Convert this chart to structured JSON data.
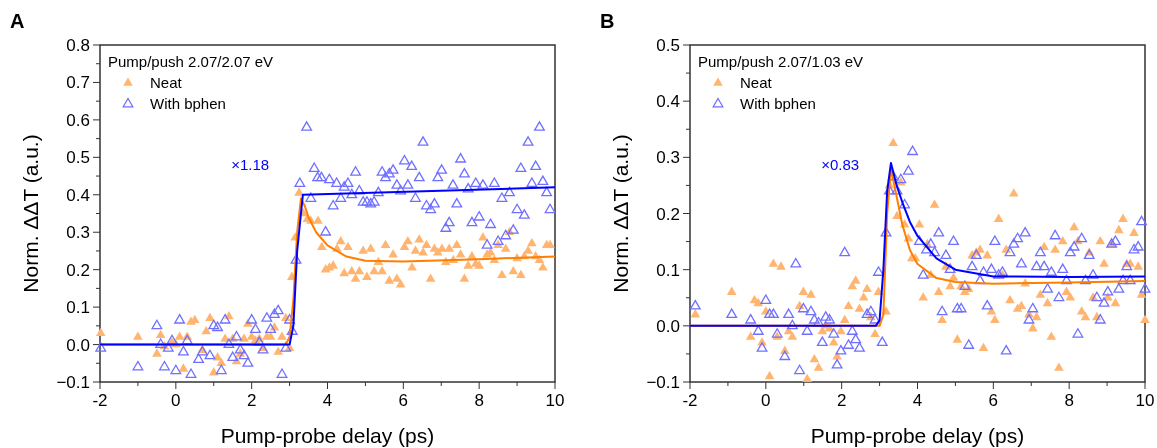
{
  "chart_data": [
    {
      "type": "scatter",
      "title": "A",
      "xlabel": "Pump-probe delay (ps)",
      "ylabel": "Norm. ΔΔT (a.u.)",
      "legend_title": "Pump/push 2.07/2.07 eV",
      "legend": "top left",
      "annotations": [
        "×1.18"
      ],
      "xlim": [
        -2,
        10
      ],
      "xticks": [
        -2,
        {
          "value": -1,
          "label": null
        },
        0,
        {
          "value": 1,
          "label": null
        },
        2,
        {
          "value": 3,
          "label": null
        },
        4,
        {
          "value": 5,
          "label": null
        },
        6,
        {
          "value": 7,
          "label": null
        },
        8,
        {
          "value": 9,
          "label": null
        },
        10
      ],
      "ylim": [
        -0.1,
        0.8
      ],
      "yticks": [
        {
          "value": -0.1,
          "label": "−0.1"
        },
        {
          "value": -0.05,
          "label": null
        },
        {
          "value": 0,
          "label": "0.0"
        },
        {
          "value": 0.05,
          "label": null
        },
        0.1,
        {
          "value": 0.15,
          "label": null
        },
        0.2,
        {
          "value": 0.25,
          "label": null
        },
        0.3,
        {
          "value": 0.35,
          "label": null
        },
        0.4,
        {
          "value": 0.45,
          "label": null
        },
        0.5,
        {
          "value": 0.55,
          "label": null
        },
        0.6,
        {
          "value": 0.65,
          "label": null
        },
        0.7,
        {
          "value": 0.75,
          "label": null
        },
        0.8
      ],
      "series": [
        {
          "name": "Neat",
          "color": "#ffb570",
          "marker": "triangle",
          "x": [
            -1.98,
            -1.0,
            -0.5,
            -0.4,
            -0.3,
            -0.1,
            0,
            0.1,
            0.2,
            0.3,
            0.4,
            0.5,
            0.7,
            0.8,
            0.9,
            1.0,
            1.1,
            1.2,
            1.3,
            1.4,
            1.5,
            1.6,
            1.7,
            1.8,
            1.9,
            2.0,
            2.1,
            2.2,
            2.3,
            2.4,
            2.5,
            2.6,
            2.7,
            2.8,
            2.9,
            3.0,
            3.06,
            3.15,
            3.25,
            3.36,
            3.47,
            3.56,
            3.75,
            3.85,
            3.95,
            4.05,
            4.15,
            4.25,
            4.35,
            4.44,
            4.54,
            4.64,
            4.74,
            4.84,
            4.94,
            5.04,
            5.14,
            5.23,
            5.34,
            5.44,
            5.53,
            5.63,
            5.73,
            5.83,
            5.93,
            6.03,
            6.12,
            6.23,
            6.32,
            6.42,
            6.52,
            6.61,
            6.72,
            6.82,
            6.91,
            7.02,
            7.12,
            7.21,
            7.32,
            7.41,
            7.51,
            7.61,
            7.71,
            7.81,
            7.91,
            8.0,
            8.1,
            8.21,
            8.3,
            8.4,
            8.5,
            8.6,
            8.7,
            8.8,
            8.9,
            9.0,
            9.1,
            9.19,
            9.29,
            9.39,
            9.49,
            9.59,
            9.68,
            9.78,
            9.87
          ],
          "values": [
            0.03,
            0.02,
            -0.025,
            0.025,
            -0.005,
            0.005,
            0.0,
            0.02,
            -0.065,
            0.02,
            0.06,
            0.065,
            -0.015,
            0.035,
            0.07,
            -0.075,
            -0.035,
            -0.05,
            0.015,
            0.075,
            0.015,
            -0.045,
            -0.025,
            0.015,
            0.055,
            0.02,
            0.01,
            0.015,
            -0.01,
            0.02,
            0.02,
            0.045,
            -0.02,
            0.02,
            0.07,
            -0.01,
            0.18,
            0.285,
            0.405,
            0.35,
            0.335,
            0.33,
            0.33,
            0.26,
            0.2,
            0.205,
            0.21,
            0.255,
            0.275,
            0.19,
            0.26,
            0.195,
            0.175,
            0.195,
            0.25,
            0.18,
            0.255,
            0.195,
            0.22,
            0.195,
            0.265,
            0.17,
            0.24,
            0.175,
            0.16,
            0.26,
            0.275,
            0.205,
            0.25,
            0.28,
            0.245,
            0.265,
            0.175,
            0.255,
            0.245,
            0.255,
            0.22,
            0.255,
            0.225,
            0.265,
            0.24,
            0.175,
            0.21,
            0.235,
            0.215,
            0.21,
            0.285,
            0.24,
            0.245,
            0.225,
            0.265,
            0.185,
            0.255,
            0.3,
            0.195,
            0.23,
            0.185,
            0.235,
            0.25,
            0.27,
            0.235,
            0.225,
            0.205,
            0.265,
            0.265
          ]
        },
        {
          "name": "With bphen",
          "color": "#7070ff",
          "marker": "triangle",
          "x": [
            -1.98,
            -1.0,
            -0.5,
            -0.4,
            -0.3,
            -0.2,
            -0.1,
            0,
            0.1,
            0.2,
            0.3,
            0.4,
            0.6,
            0.7,
            0.9,
            1.0,
            1.1,
            1.2,
            1.3,
            1.4,
            1.5,
            1.6,
            1.7,
            1.8,
            1.9,
            2.0,
            2.1,
            2.2,
            2.3,
            2.4,
            2.5,
            2.6,
            2.7,
            2.8,
            2.9,
            3.0,
            3.07,
            3.17,
            3.27,
            3.45,
            3.56,
            3.65,
            3.74,
            3.84,
            3.95,
            4.05,
            4.15,
            4.24,
            4.35,
            4.44,
            4.54,
            4.64,
            4.74,
            4.84,
            4.94,
            5.04,
            5.14,
            5.23,
            5.34,
            5.44,
            5.53,
            5.63,
            5.73,
            5.83,
            5.93,
            6.03,
            6.12,
            6.22,
            6.32,
            6.42,
            6.52,
            6.61,
            6.72,
            6.82,
            6.91,
            7.01,
            7.12,
            7.21,
            7.31,
            7.41,
            7.51,
            7.61,
            7.71,
            7.81,
            7.91,
            8.0,
            8.1,
            8.21,
            8.3,
            8.4,
            8.5,
            8.6,
            8.7,
            8.8,
            8.9,
            9.0,
            9.1,
            9.19,
            9.29,
            9.39,
            9.49,
            9.59,
            9.68,
            9.78,
            9.87
          ],
          "values": [
            -0.01,
            -0.06,
            0.05,
            0.0,
            -0.06,
            -0.01,
            0.01,
            -0.07,
            0.065,
            -0.02,
            0.01,
            -0.08,
            -0.04,
            -0.02,
            -0.03,
            0.05,
            0.045,
            -0.07,
            0.065,
            0.0,
            -0.035,
            0.02,
            -0.015,
            -0.03,
            -0.05,
            0.065,
            0.04,
            0.005,
            -0.015,
            0.07,
            0.04,
            0.08,
            0.09,
            -0.08,
            -0.01,
            0.065,
            0.035,
            0.225,
            0.43,
            0.58,
            0.39,
            0.47,
            0.445,
            0.445,
            0.3,
            0.44,
            0.37,
            0.43,
            0.39,
            0.42,
            0.43,
            0.4,
            0.46,
            0.41,
            0.38,
            0.38,
            0.375,
            0.38,
            0.405,
            0.46,
            0.445,
            0.455,
            0.465,
            0.425,
            0.41,
            0.49,
            0.425,
            0.475,
            0.39,
            0.445,
            0.54,
            0.37,
            0.36,
            0.375,
            0.445,
            0.465,
            0.31,
            0.325,
            0.425,
            0.375,
            0.495,
            0.455,
            0.415,
            0.325,
            0.43,
            0.34,
            0.425,
            0.265,
            0.32,
            0.43,
            0.275,
            0.39,
            0.29,
            0.405,
            0.305,
            0.36,
            0.47,
            0.345,
            0.54,
            0.43,
            0.475,
            0.58,
            0.435,
            0.405,
            0.36
          ]
        },
        {
          "type": "line",
          "color": "#ff7f00",
          "marker": "none",
          "x": [
            -2,
            2.9,
            3.0,
            3.1,
            3.2,
            3.3,
            3.4,
            3.5,
            3.7,
            4.0,
            4.5,
            5.0,
            6.0,
            8.0,
            10
          ],
          "values": [
            0,
            0,
            0.02,
            0.12,
            0.3,
            0.39,
            0.37,
            0.34,
            0.3,
            0.265,
            0.235,
            0.224,
            0.222,
            0.228,
            0.235
          ]
        },
        {
          "type": "line",
          "color": "#0000ff",
          "marker": "none",
          "x": [
            -2,
            3.0,
            3.1,
            3.2,
            3.35,
            10
          ],
          "values": [
            0,
            0,
            0.05,
            0.25,
            0.4,
            0.42
          ]
        }
      ]
    },
    {
      "type": "scatter",
      "title": "B",
      "xlabel": "Pump-probe delay (ps)",
      "ylabel": "Norm. ΔΔT (a.u.)",
      "legend_title": "Pump/push 2.07/1.03 eV",
      "legend": "top left",
      "annotations": [
        "×0.83"
      ],
      "xlim": [
        -2,
        10
      ],
      "xticks": [
        -2,
        {
          "value": -1,
          "label": null
        },
        0,
        {
          "value": 1,
          "label": null
        },
        2,
        {
          "value": 3,
          "label": null
        },
        4,
        {
          "value": 5,
          "label": null
        },
        6,
        {
          "value": 7,
          "label": null
        },
        8,
        {
          "value": 9,
          "label": null
        },
        10
      ],
      "ylim": [
        -0.1,
        0.5
      ],
      "yticks": [
        {
          "value": -0.1,
          "label": "−0.1"
        },
        {
          "value": -0.05,
          "label": null
        },
        {
          "value": 0,
          "label": "0.0"
        },
        {
          "value": 0.05,
          "label": null
        },
        0.1,
        {
          "value": 0.15,
          "label": null
        },
        0.2,
        {
          "value": 0.25,
          "label": null
        },
        0.3,
        {
          "value": 0.35,
          "label": null
        },
        0.4,
        {
          "value": 0.45,
          "label": null
        },
        0.5
      ],
      "series": [
        {
          "name": "Neat",
          "color": "#ffb570",
          "marker": "triangle",
          "x": [
            -1.86,
            -0.9,
            -0.4,
            -0.3,
            -0.2,
            -0.1,
            0,
            0.1,
            0.2,
            0.3,
            0.4,
            0.5,
            0.6,
            0.7,
            0.89,
            0.99,
            1.09,
            1.19,
            1.28,
            1.39,
            1.49,
            1.58,
            1.68,
            1.79,
            1.88,
            1.98,
            2.08,
            2.18,
            2.28,
            2.37,
            2.47,
            2.58,
            2.67,
            2.77,
            2.88,
            2.97,
            3.17,
            3.26,
            3.36,
            3.46,
            3.56,
            3.66,
            3.76,
            3.85,
            3.94,
            4.05,
            4.15,
            4.26,
            4.35,
            4.45,
            4.56,
            4.65,
            4.75,
            4.86,
            4.95,
            5.05,
            5.15,
            5.25,
            5.35,
            5.44,
            5.55,
            5.65,
            5.74,
            5.84,
            5.95,
            6.04,
            6.14,
            6.24,
            6.34,
            6.44,
            6.54,
            6.64,
            6.74,
            6.84,
            6.94,
            7.04,
            7.14,
            7.24,
            7.34,
            7.43,
            7.53,
            7.63,
            7.73,
            7.83,
            7.93,
            8.03,
            8.13,
            8.23,
            8.33,
            8.43,
            8.53,
            8.63,
            8.73,
            8.82,
            8.92,
            9.02,
            9.12,
            9.22,
            9.31,
            9.42,
            9.52,
            9.61,
            9.71,
            9.82,
            9.91,
            10.0
          ],
          "values": [
            0.02,
            0.06,
            -0.02,
            0.045,
            0.04,
            -0.03,
            0.025,
            -0.09,
            0.11,
            -0.02,
            0.105,
            -0.045,
            -0.01,
            -0.02,
            0.035,
            0.06,
            -0.095,
            0.055,
            -0.06,
            -0.075,
            -0.01,
            0.0,
            -0.005,
            -0.03,
            -0.055,
            -0.01,
            0.01,
            0.035,
            0.07,
            0.08,
            0.03,
            0.05,
            0.065,
            0.015,
            -0.015,
            0.06,
            0.025,
            0.25,
            0.325,
            0.195,
            0.255,
            0.18,
            0.155,
            0.12,
            0.12,
            0.18,
            0.05,
            0.145,
            0.09,
            0.215,
            0.06,
            0.01,
            0.105,
            0.07,
            0.085,
            -0.025,
            0.07,
            0.06,
            0.065,
            0.125,
            0.13,
            0.135,
            -0.04,
            0.125,
            0.025,
            0.01,
            0.19,
            0.09,
            0.135,
            0.045,
            0.235,
            0.03,
            0.035,
            0.075,
            0.02,
            -0.005,
            0.015,
            0.055,
            0.14,
            0.04,
            -0.02,
            0.135,
            -0.075,
            0.15,
            0.06,
            0.05,
            0.175,
            0.15,
            0.025,
            0.015,
            0.13,
            0.05,
            0.015,
            0.15,
            0.11,
            0.05,
            0.145,
            0.04,
            0.17,
            0.19,
            0.11,
            0.11,
            0.165,
            0.105,
            0.055,
            0.01
          ]
        },
        {
          "name": "With bphen",
          "color": "#7070ff",
          "marker": "triangle",
          "x": [
            -1.86,
            -0.9,
            -0.4,
            -0.2,
            -0.1,
            0,
            0.1,
            0.2,
            0.3,
            0.5,
            0.6,
            0.7,
            0.79,
            0.89,
            0.99,
            1.09,
            1.19,
            1.28,
            1.39,
            1.49,
            1.58,
            1.68,
            1.79,
            1.88,
            1.98,
            2.08,
            2.18,
            2.28,
            2.37,
            2.47,
            2.67,
            2.77,
            2.88,
            2.97,
            3.07,
            3.17,
            3.26,
            3.36,
            3.46,
            3.56,
            3.66,
            3.76,
            3.87,
            4.05,
            4.15,
            4.24,
            4.35,
            4.45,
            4.56,
            4.65,
            4.75,
            4.86,
            4.95,
            5.05,
            5.15,
            5.25,
            5.35,
            5.44,
            5.55,
            5.65,
            5.74,
            5.84,
            5.95,
            6.04,
            6.14,
            6.24,
            6.34,
            6.44,
            6.54,
            6.64,
            6.74,
            6.84,
            6.94,
            7.04,
            7.14,
            7.24,
            7.34,
            7.43,
            7.53,
            7.63,
            7.73,
            7.83,
            7.93,
            8.03,
            8.13,
            8.23,
            8.33,
            8.43,
            8.53,
            8.63,
            8.73,
            8.82,
            8.92,
            9.02,
            9.12,
            9.22,
            9.31,
            9.42,
            9.52,
            9.61,
            9.71,
            9.82,
            9.91,
            10.0
          ],
          "values": [
            0.035,
            0.02,
            0.01,
            -0.01,
            -0.04,
            0.045,
            0.02,
            0.02,
            -0.015,
            -0.055,
            0.02,
            0.0,
            0.11,
            -0.08,
            0.03,
            -0.01,
            0.025,
            0.01,
            0.005,
            -0.03,
            0.015,
            0.01,
            -0.015,
            -0.07,
            -0.045,
            0.13,
            -0.035,
            -0.01,
            -0.025,
            -0.04,
            0.02,
            0.025,
            0.01,
            0.095,
            -0.03,
            0.165,
            0.24,
            0.265,
            0.24,
            0.26,
            0.215,
            0.275,
            0.31,
            0.15,
            0.09,
            0.135,
            0.145,
            0.13,
            0.165,
            0.025,
            0.125,
            0.1,
            0.15,
            0.03,
            0.03,
            0.07,
            -0.035,
            0.105,
            0.125,
            0.08,
            0.095,
            0.035,
            0.1,
            0.15,
            0.09,
            0.095,
            -0.045,
            0.13,
            0.145,
            0.155,
            0.11,
            0.165,
            0.01,
            0.03,
            0.105,
            0.13,
            0.105,
            0.065,
            0.095,
            0.16,
            0.05,
            0.1,
            0.08,
            0.13,
            0.14,
            -0.015,
            0.155,
            0.08,
            0.125,
            0.09,
            0.05,
            0.01,
            0.04,
            0.06,
            0.145,
            0.15,
            0.065,
            0.08,
            0.105,
            0.08,
            0.135,
            0.14,
            0.185,
            0.065
          ]
        },
        {
          "type": "line",
          "color": "#ff7f00",
          "marker": "none",
          "x": [
            -2,
            3.0,
            3.1,
            3.2,
            3.3,
            3.45,
            3.6,
            3.8,
            4.0,
            4.5,
            5.0,
            6.0,
            8.0,
            10
          ],
          "values": [
            0,
            0,
            0.02,
            0.2,
            0.28,
            0.23,
            0.18,
            0.135,
            0.11,
            0.085,
            0.078,
            0.075,
            0.077,
            0.08
          ]
        },
        {
          "type": "line",
          "color": "#0000ff",
          "marker": "none",
          "x": [
            -2,
            2.9,
            3.0,
            3.1,
            3.2,
            3.3,
            3.45,
            3.6,
            3.8,
            4.0,
            4.5,
            5.0,
            6.0,
            8.0,
            10
          ],
          "values": [
            0,
            0,
            0.01,
            0.1,
            0.24,
            0.29,
            0.25,
            0.22,
            0.185,
            0.16,
            0.12,
            0.1,
            0.088,
            0.087,
            0.088
          ]
        }
      ]
    }
  ]
}
